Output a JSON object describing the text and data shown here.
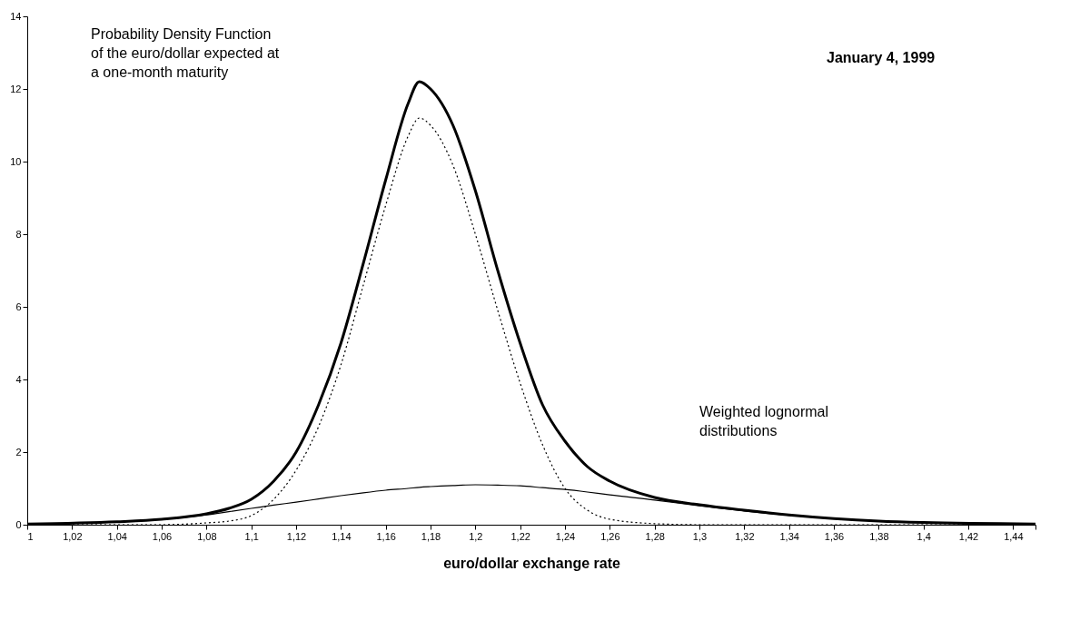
{
  "chart_data": {
    "type": "line",
    "title": "January 4, 1999",
    "xlabel": "euro/dollar exchange rate",
    "x": [
      1.0,
      1.04,
      1.06,
      1.08,
      1.09,
      1.1,
      1.11,
      1.12,
      1.13,
      1.14,
      1.15,
      1.16,
      1.17,
      1.175,
      1.18,
      1.19,
      1.2,
      1.21,
      1.22,
      1.23,
      1.24,
      1.25,
      1.26,
      1.28,
      1.3,
      1.32,
      1.34,
      1.36,
      1.38,
      1.4,
      1.45
    ],
    "series": [
      {
        "color": "#000000",
        "line_style": "solid",
        "values": [
          0.02,
          0.08,
          0.15,
          0.3,
          0.45,
          0.7,
          1.2,
          2.0,
          3.3,
          5.0,
          7.2,
          9.5,
          11.6,
          12.2,
          12.0,
          11.0,
          9.2,
          7.0,
          5.0,
          3.3,
          2.3,
          1.6,
          1.2,
          0.75,
          0.55,
          0.4,
          0.27,
          0.17,
          0.1,
          0.06,
          0.02
        ]
      },
      {
        "color": "#000000",
        "line_style": "dotted",
        "values": [
          0,
          0,
          0,
          0.05,
          0.1,
          0.25,
          0.7,
          1.5,
          2.7,
          4.4,
          6.6,
          8.8,
          10.7,
          11.2,
          11.0,
          9.9,
          8.0,
          5.9,
          3.9,
          2.2,
          1.0,
          0.4,
          0.15,
          0.03,
          0,
          0,
          0,
          0,
          0,
          0,
          0
        ]
      },
      {
        "color": "#000000",
        "line_style": "solid",
        "values": [
          0.02,
          0.08,
          0.15,
          0.27,
          0.36,
          0.45,
          0.54,
          0.62,
          0.71,
          0.8,
          0.88,
          0.95,
          1.0,
          1.03,
          1.05,
          1.08,
          1.1,
          1.09,
          1.07,
          1.02,
          0.97,
          0.9,
          0.82,
          0.68,
          0.52,
          0.38,
          0.26,
          0.17,
          0.1,
          0.06,
          0.02
        ]
      }
    ],
    "xlim": [
      1,
      1.45
    ],
    "ylim": [
      0,
      14
    ],
    "xticks": [
      1,
      {
        "value": 1.02,
        "label": "1,02"
      },
      {
        "value": 1.04,
        "label": "1,04"
      },
      {
        "value": 1.06,
        "label": "1,06"
      },
      {
        "value": 1.08,
        "label": "1,08"
      },
      {
        "value": 1.1,
        "label": "1,1"
      },
      {
        "value": 1.12,
        "label": "1,12"
      },
      {
        "value": 1.14,
        "label": "1,14"
      },
      {
        "value": 1.16,
        "label": "1,16"
      },
      {
        "value": 1.18,
        "label": "1,18"
      },
      {
        "value": 1.2,
        "label": "1,2"
      },
      {
        "value": 1.22,
        "label": "1,22"
      },
      {
        "value": 1.24,
        "label": "1,24"
      },
      {
        "value": 1.26,
        "label": "1,26"
      },
      {
        "value": 1.28,
        "label": "1,28"
      },
      {
        "value": 1.3,
        "label": "1,3"
      },
      {
        "value": 1.32,
        "label": "1,32"
      },
      {
        "value": 1.34,
        "label": "1,34"
      },
      {
        "value": 1.36,
        "label": "1,36"
      },
      {
        "value": 1.38,
        "label": "1,38"
      },
      {
        "value": 1.4,
        "label": "1,4"
      },
      {
        "value": 1.42,
        "label": "1,42"
      },
      {
        "value": 1.44,
        "label": "1,44"
      },
      {
        "value": 1.45,
        "label": null
      }
    ],
    "yticks": [
      0,
      2,
      4,
      6,
      8,
      10,
      12,
      14
    ],
    "annotations": [
      "Probability Density Function of the euro/dollar expected at a one-month maturity",
      "Weighted lognormal distributions"
    ],
    "grid": false,
    "marker": "none"
  }
}
